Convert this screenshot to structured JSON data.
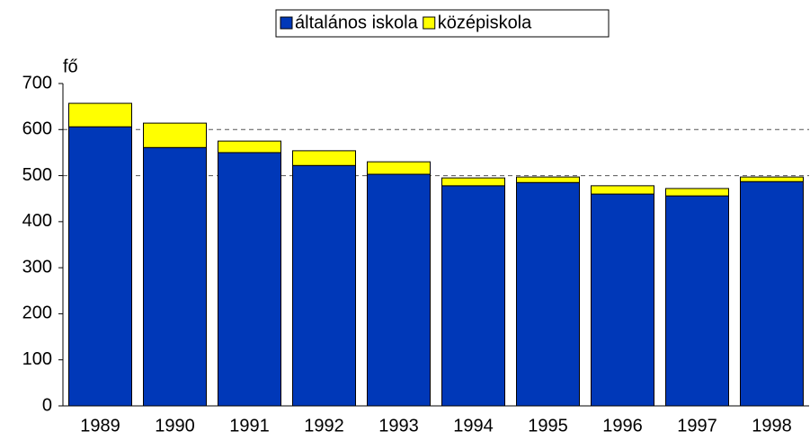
{
  "chart_data": {
    "type": "stacked_bar",
    "y_label": "fő",
    "categories": [
      "1989",
      "1990",
      "1991",
      "1992",
      "1993",
      "1994",
      "1995",
      "1996",
      "1997",
      "1998"
    ],
    "series": [
      {
        "name": "általános iskola",
        "color": "#0038b8",
        "values": [
          606,
          561,
          550,
          522,
          503,
          478,
          485,
          460,
          456,
          487
        ]
      },
      {
        "name": "középiskola",
        "color": "#ffff00",
        "values": [
          51,
          53,
          25,
          32,
          27,
          17,
          12,
          18,
          16,
          10
        ]
      }
    ],
    "ylim": [
      0,
      700
    ],
    "yticks": [
      0,
      100,
      200,
      300,
      400,
      500,
      600,
      700
    ],
    "gridlines": [
      500,
      600
    ],
    "legend": "top"
  }
}
